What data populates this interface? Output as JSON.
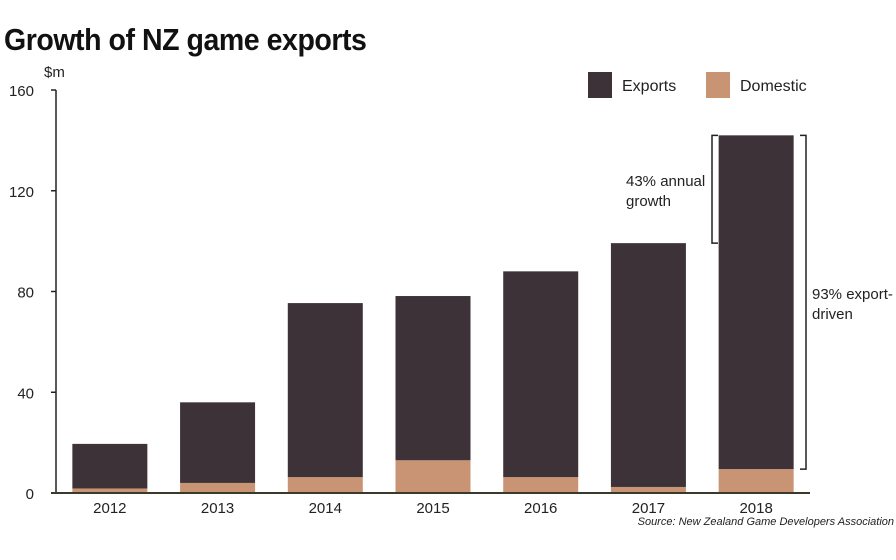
{
  "chart_data": {
    "type": "bar",
    "stacked": true,
    "title": "Growth of NZ game exports",
    "ylabel": "$m",
    "ylim": [
      0,
      160
    ],
    "yticks": [
      0,
      40,
      80,
      120,
      160
    ],
    "categories": [
      "2012",
      "2013",
      "2014",
      "2015",
      "2016",
      "2017",
      "2018"
    ],
    "series": [
      {
        "name": "Domestic",
        "color": "#c99473",
        "values": [
          1.8,
          4,
          6.3,
          13,
          6.3,
          2.4,
          9.5
        ]
      },
      {
        "name": "Exports",
        "color": "#3d3238",
        "values": [
          17.7,
          32,
          69.1,
          65.2,
          81.7,
          96.8,
          132.5
        ]
      }
    ],
    "legend_position": "top-right",
    "annotations": [
      {
        "text": [
          "43% annual",
          "growth"
        ],
        "from": 99.2,
        "to": 142
      },
      {
        "text": [
          "93% export-",
          "driven"
        ],
        "from": 9.5,
        "to": 142
      }
    ],
    "source": "Source: New Zealand Game Developers Association",
    "grid": false
  }
}
